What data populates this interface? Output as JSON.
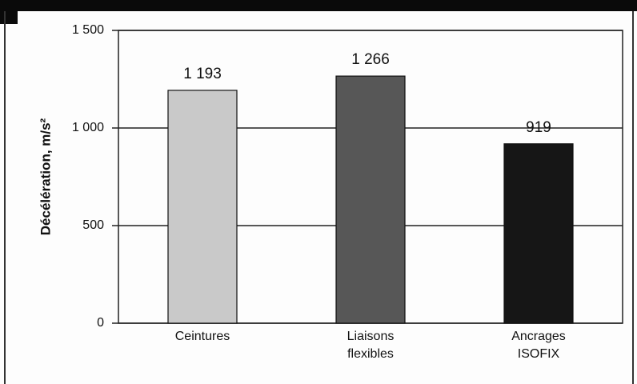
{
  "chart_data": {
    "type": "bar",
    "ylabel": "Décélération, m/s²",
    "categories": [
      "Ceintures",
      "Liaisons flexibles",
      "Ancrages ISOFIX"
    ],
    "values": [
      1193,
      1266,
      919
    ],
    "value_labels": [
      "1 193",
      "1 266",
      "919"
    ],
    "colors": [
      "#c9c9c9",
      "#575757",
      "#161616"
    ],
    "ylim": [
      0,
      1500
    ],
    "yticks": [
      0,
      500,
      {
        "value": 1000,
        "label": "1 000"
      },
      {
        "value": 1500,
        "label": "1 500"
      }
    ],
    "grid": true
  }
}
